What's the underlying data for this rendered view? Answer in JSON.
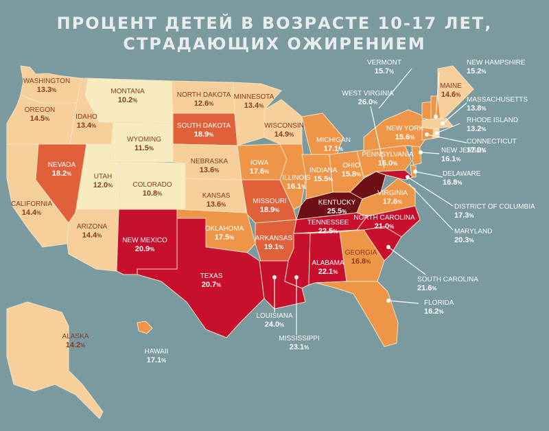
{
  "title_line1": "ПРОЦЕНТ ДЕТЕЙ В ВОЗРАСТЕ 10-17 ЛЕТ,",
  "title_line2": "СТРАДАЮЩИХ ОЖИРЕНИЕМ",
  "colors": {
    "background": "#7a9aa0",
    "tier1": "#f7ebc0",
    "tier2": "#f6cf9b",
    "tier3": "#ef9548",
    "tier4": "#e0603a",
    "tier5": "#c8102e",
    "tier6": "#6e0f16",
    "label_dark": "#8a3a1e",
    "label_light": "#ffffff"
  },
  "states": {
    "washington": {
      "name": "WASHINGTON",
      "value": "13.3"
    },
    "oregon": {
      "name": "OREGON",
      "value": "14.5"
    },
    "california": {
      "name": "CALIFORNIA",
      "value": "14.4"
    },
    "nevada": {
      "name": "NEVADA",
      "value": "18.2"
    },
    "idaho": {
      "name": "IDAHO",
      "value": "13.4"
    },
    "montana": {
      "name": "MONTANA",
      "value": "10.2"
    },
    "wyoming": {
      "name": "WYOMING",
      "value": "11.5"
    },
    "utah": {
      "name": "UTAH",
      "value": "12.0"
    },
    "colorado": {
      "name": "COLORADO",
      "value": "10.8"
    },
    "arizona": {
      "name": "ARIZONA",
      "value": "14.4"
    },
    "new_mexico": {
      "name": "NEW MEXICO",
      "value": "20.9"
    },
    "north_dakota": {
      "name": "NORTH DAKOTA",
      "value": "12.6"
    },
    "south_dakota": {
      "name": "SOUTH DAKOTA",
      "value": "18.9"
    },
    "nebraska": {
      "name": "NEBRASKA",
      "value": "13.6"
    },
    "kansas": {
      "name": "KANSAS",
      "value": "13.6"
    },
    "oklahoma": {
      "name": "OKLAHOMA",
      "value": "17.5"
    },
    "texas": {
      "name": "TEXAS",
      "value": "20.7"
    },
    "minnesota": {
      "name": "MINNESOTA",
      "value": "13.4"
    },
    "iowa": {
      "name": "IOWA",
      "value": "17.6"
    },
    "missouri": {
      "name": "MISSOURI",
      "value": "18.9"
    },
    "arkansas": {
      "name": "ARKANSAS",
      "value": "19.1"
    },
    "louisiana": {
      "name": "LOUISIANA",
      "value": "24.0"
    },
    "wisconsin": {
      "name": "WISCONSIN",
      "value": "14.9"
    },
    "illinois": {
      "name": "ILLINOIS",
      "value": "16.1"
    },
    "michigan": {
      "name": "MICHIGAN",
      "value": "17.1"
    },
    "indiana": {
      "name": "INDIANA",
      "value": "15.5"
    },
    "ohio": {
      "name": "OHIO",
      "value": "15.8"
    },
    "kentucky": {
      "name": "KENTUCKY",
      "value": "25.5"
    },
    "tennessee": {
      "name": "TENNESSEE",
      "value": "22.5"
    },
    "mississippi": {
      "name": "MISSISSIPPI",
      "value": "23.1"
    },
    "alabama": {
      "name": "ALABAMA",
      "value": "22.1"
    },
    "georgia": {
      "name": "GEORGIA",
      "value": "16.8"
    },
    "florida": {
      "name": "FLORIDA",
      "value": "16.2"
    },
    "south_carolina": {
      "name": "SOUTH CAROLINA",
      "value": "21.6"
    },
    "north_carolina": {
      "name": "NORTH CAROLINA",
      "value": "21.0"
    },
    "virginia": {
      "name": "VIRGINIA",
      "value": "17.6"
    },
    "west_virginia": {
      "name": "WEST VIRGINIA",
      "value": "26.0"
    },
    "pennsylvania": {
      "name": "PENNSYLVANIA",
      "value": "16.0"
    },
    "new_york": {
      "name": "NEW YORK",
      "value": "15.6"
    },
    "vermont": {
      "name": "VERMONT",
      "value": "15.7"
    },
    "new_hampshire": {
      "name": "NEW HAMPSHIRE",
      "value": "15.2"
    },
    "maine": {
      "name": "MAINE",
      "value": "14.6"
    },
    "massachusetts": {
      "name": "MASSACHUSETTS",
      "value": "13.8"
    },
    "rhode_island": {
      "name": "RHODE ISLAND",
      "value": "13.2"
    },
    "connecticut": {
      "name": "CONNECTICUT",
      "value": "17.0"
    },
    "new_jersey": {
      "name": "NEW JERSEY",
      "value": "16.1"
    },
    "delaware": {
      "name": "DELAWARE",
      "value": "16.8"
    },
    "district_of_columbia": {
      "name": "DISTRICT OF COLUMBIA",
      "value": "17.3"
    },
    "maryland": {
      "name": "MARYLAND",
      "value": "20.3"
    },
    "alaska": {
      "name": "ALASKA",
      "value": "14.2"
    },
    "hawaii": {
      "name": "HAWAII",
      "value": "17.1"
    }
  },
  "percent_sign": "%"
}
